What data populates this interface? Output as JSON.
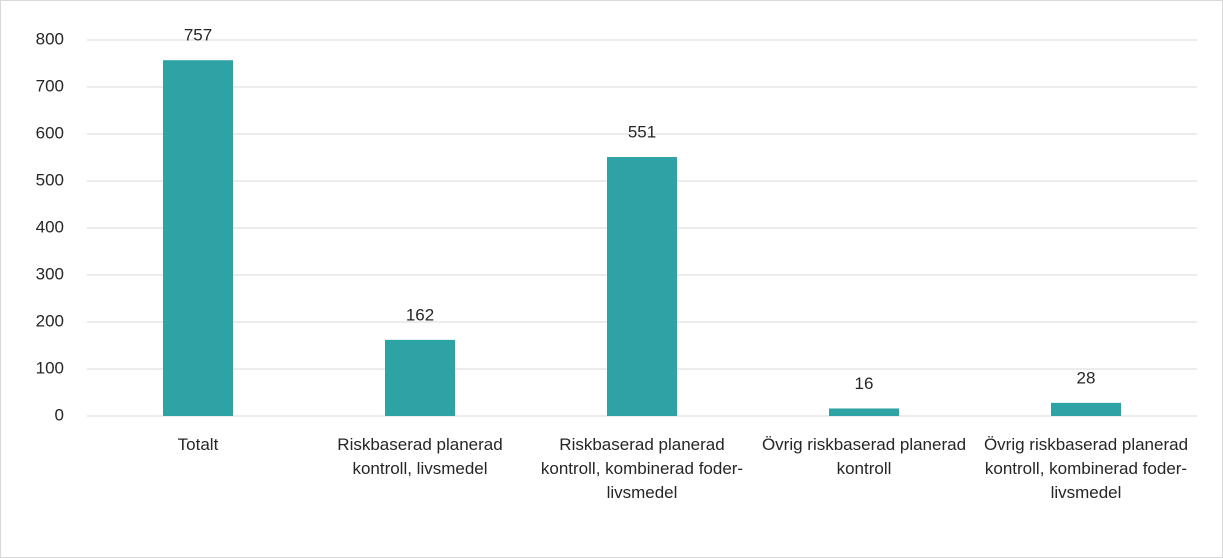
{
  "chart_data": {
    "type": "bar",
    "categories": [
      "Totalt",
      "Riskbaserad planerad kontroll, livsmedel",
      "Riskbaserad planerad kontroll, kombinerad foder-livsmedel",
      "Övrig riskbaserad planerad kontroll",
      "Övrig riskbaserad planerad kontroll, kombinerad foder-livsmedel"
    ],
    "values": [
      757,
      162,
      551,
      16,
      28
    ],
    "color": "#2ea3a5",
    "ylim": [
      0,
      800
    ],
    "yticks": [
      0,
      100,
      200,
      300,
      400,
      500,
      600,
      700,
      800
    ],
    "grid": true
  }
}
